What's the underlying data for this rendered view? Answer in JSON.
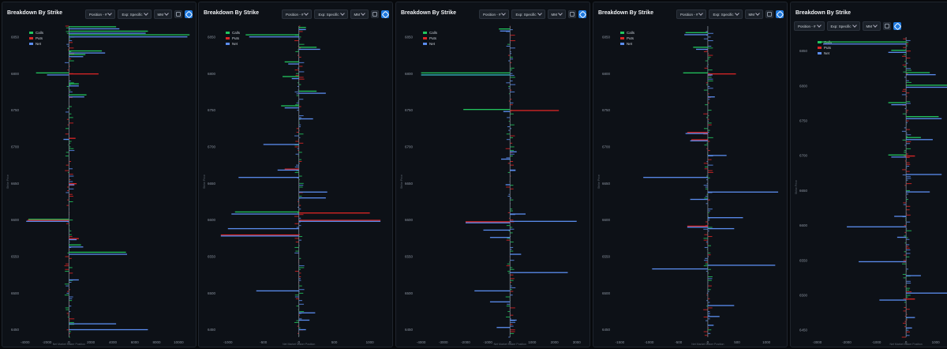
{
  "title": "Breakdown By Strike",
  "controls": {
    "position": "Position - #",
    "exp": "Exp: Specific",
    "mm": "MM"
  },
  "legend": [
    "Calls",
    "Puts",
    "Net"
  ],
  "colors": {
    "calls": "#22c55e",
    "puts": "#dc2626",
    "net": "#5b8def",
    "highlight": "#38c0c8",
    "axis": "#7d8590"
  },
  "axis_titles": {
    "x": "Net Market Maker Position",
    "y": "Strike Price"
  },
  "chart_data": [
    {
      "type": "bar",
      "title": "Breakdown By Strike",
      "ylabel": "Strike Price",
      "xlabel": "Net Market Maker Position",
      "y_ticks": [
        6850,
        6800,
        6750,
        6700,
        6650,
        6600,
        6550,
        6500,
        6450
      ],
      "ylim": [
        6440,
        6865
      ],
      "x_ticks": [
        -4000,
        -2000,
        0,
        2000,
        4000,
        6000,
        8000,
        10000
      ],
      "xlim": [
        -4200,
        11200
      ],
      "series": [
        {
          "name": "Calls"
        },
        {
          "name": "Puts"
        },
        {
          "name": "Net"
        }
      ],
      "bars": [
        {
          "strike": 6863,
          "calls": 4300,
          "net": 4600
        },
        {
          "strike": 6857,
          "calls": 7200,
          "net": 7000
        },
        {
          "strike": 6852,
          "calls": 11000,
          "net": 10800
        },
        {
          "strike": 6830,
          "calls": 3000,
          "net": 3300
        },
        {
          "strike": 6825,
          "calls": 1500,
          "net": 1300
        },
        {
          "strike": 6800,
          "calls": -3000,
          "puts": 2700,
          "net": -2000
        },
        {
          "strike": 6785,
          "calls": 900,
          "net": 900
        },
        {
          "strike": 6770,
          "calls": 1600,
          "net": 1400
        },
        {
          "strike": 6712,
          "puts": 600,
          "net": -500
        },
        {
          "strike": 6650,
          "puts": 700,
          "net": 500
        },
        {
          "strike": 6600,
          "calls": -3700,
          "puts": -3800,
          "net": -3900
        },
        {
          "strike": 6575,
          "puts": 900,
          "net": 700
        },
        {
          "strike": 6565,
          "calls": 1100,
          "net": 1300
        },
        {
          "strike": 6555,
          "calls": 5200,
          "net": 5300
        },
        {
          "strike": 6520,
          "net": 900
        },
        {
          "strike": 6460,
          "net": 4300
        },
        {
          "strike": 6452,
          "net": 7200
        }
      ]
    },
    {
      "type": "bar",
      "title": "Breakdown By Strike",
      "ylabel": "Strike Price",
      "xlabel": "Net Market Maker Position",
      "y_ticks": [
        6850,
        6800,
        6750,
        6700,
        6650,
        6600,
        6550,
        6500,
        6450
      ],
      "ylim": [
        6440,
        6865
      ],
      "x_ticks": [
        -1000,
        -500,
        0,
        500,
        1000
      ],
      "xlim": [
        -1120,
        1260
      ],
      "series": [
        {
          "name": "Calls"
        },
        {
          "name": "Puts"
        },
        {
          "name": "Net"
        }
      ],
      "bars": [
        {
          "strike": 6862,
          "calls": 100,
          "net": 100
        },
        {
          "strike": 6852,
          "calls": -750,
          "net": -700
        },
        {
          "strike": 6835,
          "calls": 250,
          "net": 300
        },
        {
          "strike": 6815,
          "calls": -200,
          "net": -150
        },
        {
          "strike": 6795,
          "calls": -230,
          "net": -100
        },
        {
          "strike": 6775,
          "calls": 250,
          "net": 380
        },
        {
          "strike": 6755,
          "calls": -250,
          "net": -200
        },
        {
          "strike": 6740,
          "net": 200
        },
        {
          "strike": 6705,
          "net": -500
        },
        {
          "strike": 6670,
          "puts": -200,
          "net": -300
        },
        {
          "strike": 6660,
          "net": -850
        },
        {
          "strike": 6640,
          "net": 400
        },
        {
          "strike": 6632,
          "net": 380
        },
        {
          "strike": 6610,
          "calls": -900,
          "puts": 1000,
          "net": -950
        },
        {
          "strike": 6600,
          "puts": 1150,
          "net": 1150
        },
        {
          "strike": 6590,
          "net": -1000
        },
        {
          "strike": 6580,
          "puts": -1100,
          "net": -1100
        },
        {
          "strike": 6505,
          "net": -600
        },
        {
          "strike": 6475,
          "net": 230
        },
        {
          "strike": 6465,
          "net": 150
        },
        {
          "strike": 6452,
          "net": 100
        }
      ]
    },
    {
      "type": "bar",
      "title": "Breakdown By Strike",
      "ylabel": "Strike Price",
      "xlabel": "Net Market Maker Position",
      "y_ticks": [
        6850,
        6800,
        6750,
        6700,
        6650,
        6600,
        6550,
        6500,
        6450
      ],
      "ylim": [
        6440,
        6865
      ],
      "x_ticks": [
        -4000,
        -3000,
        -2000,
        -1000,
        0,
        1000,
        2000,
        3000
      ],
      "xlim": [
        -4200,
        3400
      ],
      "series": [
        {
          "name": "Calls"
        },
        {
          "name": "Puts"
        },
        {
          "name": "Net"
        }
      ],
      "bars": [
        {
          "strike": 6860,
          "calls": -500,
          "net": -450
        },
        {
          "strike": 6800,
          "calls": -4000,
          "net": -4000
        },
        {
          "strike": 6750,
          "calls": -2100,
          "puts": 2200,
          "net": -300
        },
        {
          "strike": 6695,
          "net": 300
        },
        {
          "strike": 6685,
          "net": -400
        },
        {
          "strike": 6670,
          "net": 250
        },
        {
          "strike": 6650,
          "net": -200
        },
        {
          "strike": 6610,
          "net": 700
        },
        {
          "strike": 6600,
          "net": 3000
        },
        {
          "strike": 6598,
          "puts": -2000,
          "net": -2000
        },
        {
          "strike": 6588,
          "net": -1200
        },
        {
          "strike": 6578,
          "net": -900
        },
        {
          "strike": 6555,
          "net": 500
        },
        {
          "strike": 6530,
          "net": 2600
        },
        {
          "strike": 6505,
          "net": -1600
        },
        {
          "strike": 6490,
          "net": -900
        },
        {
          "strike": 6465,
          "net": 300
        },
        {
          "strike": 6455,
          "net": -600
        }
      ]
    },
    {
      "type": "bar",
      "title": "Breakdown By Strike",
      "ylabel": "Strike Price",
      "xlabel": "Net Market Maker Position",
      "y_ticks": [
        6850,
        6800,
        6750,
        6700,
        6650,
        6600,
        6550,
        6500,
        6450
      ],
      "ylim": [
        6440,
        6865
      ],
      "x_ticks": [
        -1500,
        -1000,
        -500,
        0,
        500,
        1000
      ],
      "xlim": [
        -1600,
        1280
      ],
      "series": [
        {
          "name": "Calls"
        },
        {
          "name": "Puts"
        },
        {
          "name": "Net"
        }
      ],
      "bars": [
        {
          "strike": 6855,
          "calls": -380,
          "net": -400
        },
        {
          "strike": 6835,
          "calls": -250,
          "net": -200
        },
        {
          "strike": 6800,
          "calls": -420,
          "puts": 480,
          "net": 80
        },
        {
          "strike": 6770,
          "net": 120
        },
        {
          "strike": 6720,
          "puts": -350,
          "net": -380
        },
        {
          "strike": 6710,
          "puts": -280,
          "net": -300
        },
        {
          "strike": 6690,
          "net": 320
        },
        {
          "strike": 6660,
          "net": -1100
        },
        {
          "strike": 6640,
          "net": 1200
        },
        {
          "strike": 6630,
          "net": -300
        },
        {
          "strike": 6605,
          "net": 600
        },
        {
          "strike": 6592,
          "puts": -350,
          "net": -350
        },
        {
          "strike": 6590,
          "net": 450
        },
        {
          "strike": 6540,
          "net": 1150
        },
        {
          "strike": 6535,
          "net": -950
        },
        {
          "strike": 6485,
          "net": 450
        },
        {
          "strike": 6470,
          "net": 200
        },
        {
          "strike": 6458,
          "net": 100
        }
      ]
    },
    {
      "type": "bar",
      "title": "Breakdown By Strike",
      "ylabel": "Strike Price",
      "xlabel": "Net Market Maker Position",
      "y_ticks": [
        6850,
        6800,
        6750,
        6700,
        6650,
        6600,
        6550,
        6500,
        6450
      ],
      "ylim": [
        6440,
        6870
      ],
      "x_ticks": [
        -3000,
        -2000,
        -1000,
        0,
        1000,
        2000
      ],
      "xlim": [
        -3200,
        2500
      ],
      "series": [
        {
          "name": "Calls"
        },
        {
          "name": "Puts"
        },
        {
          "name": "Net"
        }
      ],
      "bars": [
        {
          "strike": 6862,
          "calls": -2900,
          "net": -2800
        },
        {
          "strike": 6850,
          "calls": -500,
          "net": -600
        },
        {
          "strike": 6818,
          "calls": 800,
          "net": 1000
        },
        {
          "strike": 6800,
          "calls": 2000,
          "net": 2300
        },
        {
          "strike": 6775,
          "calls": -600,
          "net": -500
        },
        {
          "strike": 6755,
          "calls": 1100,
          "net": 1200
        },
        {
          "strike": 6725,
          "calls": 500,
          "net": 900
        },
        {
          "strike": 6700,
          "calls": -600,
          "puts": 300,
          "net": -500
        },
        {
          "strike": 6675,
          "net": 1200
        },
        {
          "strike": 6650,
          "net": 800
        },
        {
          "strike": 6615,
          "net": -400
        },
        {
          "strike": 6600,
          "net": -2000
        },
        {
          "strike": 6585,
          "net": -300
        },
        {
          "strike": 6550,
          "net": -1600
        },
        {
          "strike": 6530,
          "net": 500
        },
        {
          "strike": 6505,
          "net": 2300
        },
        {
          "strike": 6495,
          "puts": 300,
          "net": -900
        },
        {
          "strike": 6470,
          "net": 300
        },
        {
          "strike": 6455,
          "net": 200
        }
      ]
    }
  ]
}
